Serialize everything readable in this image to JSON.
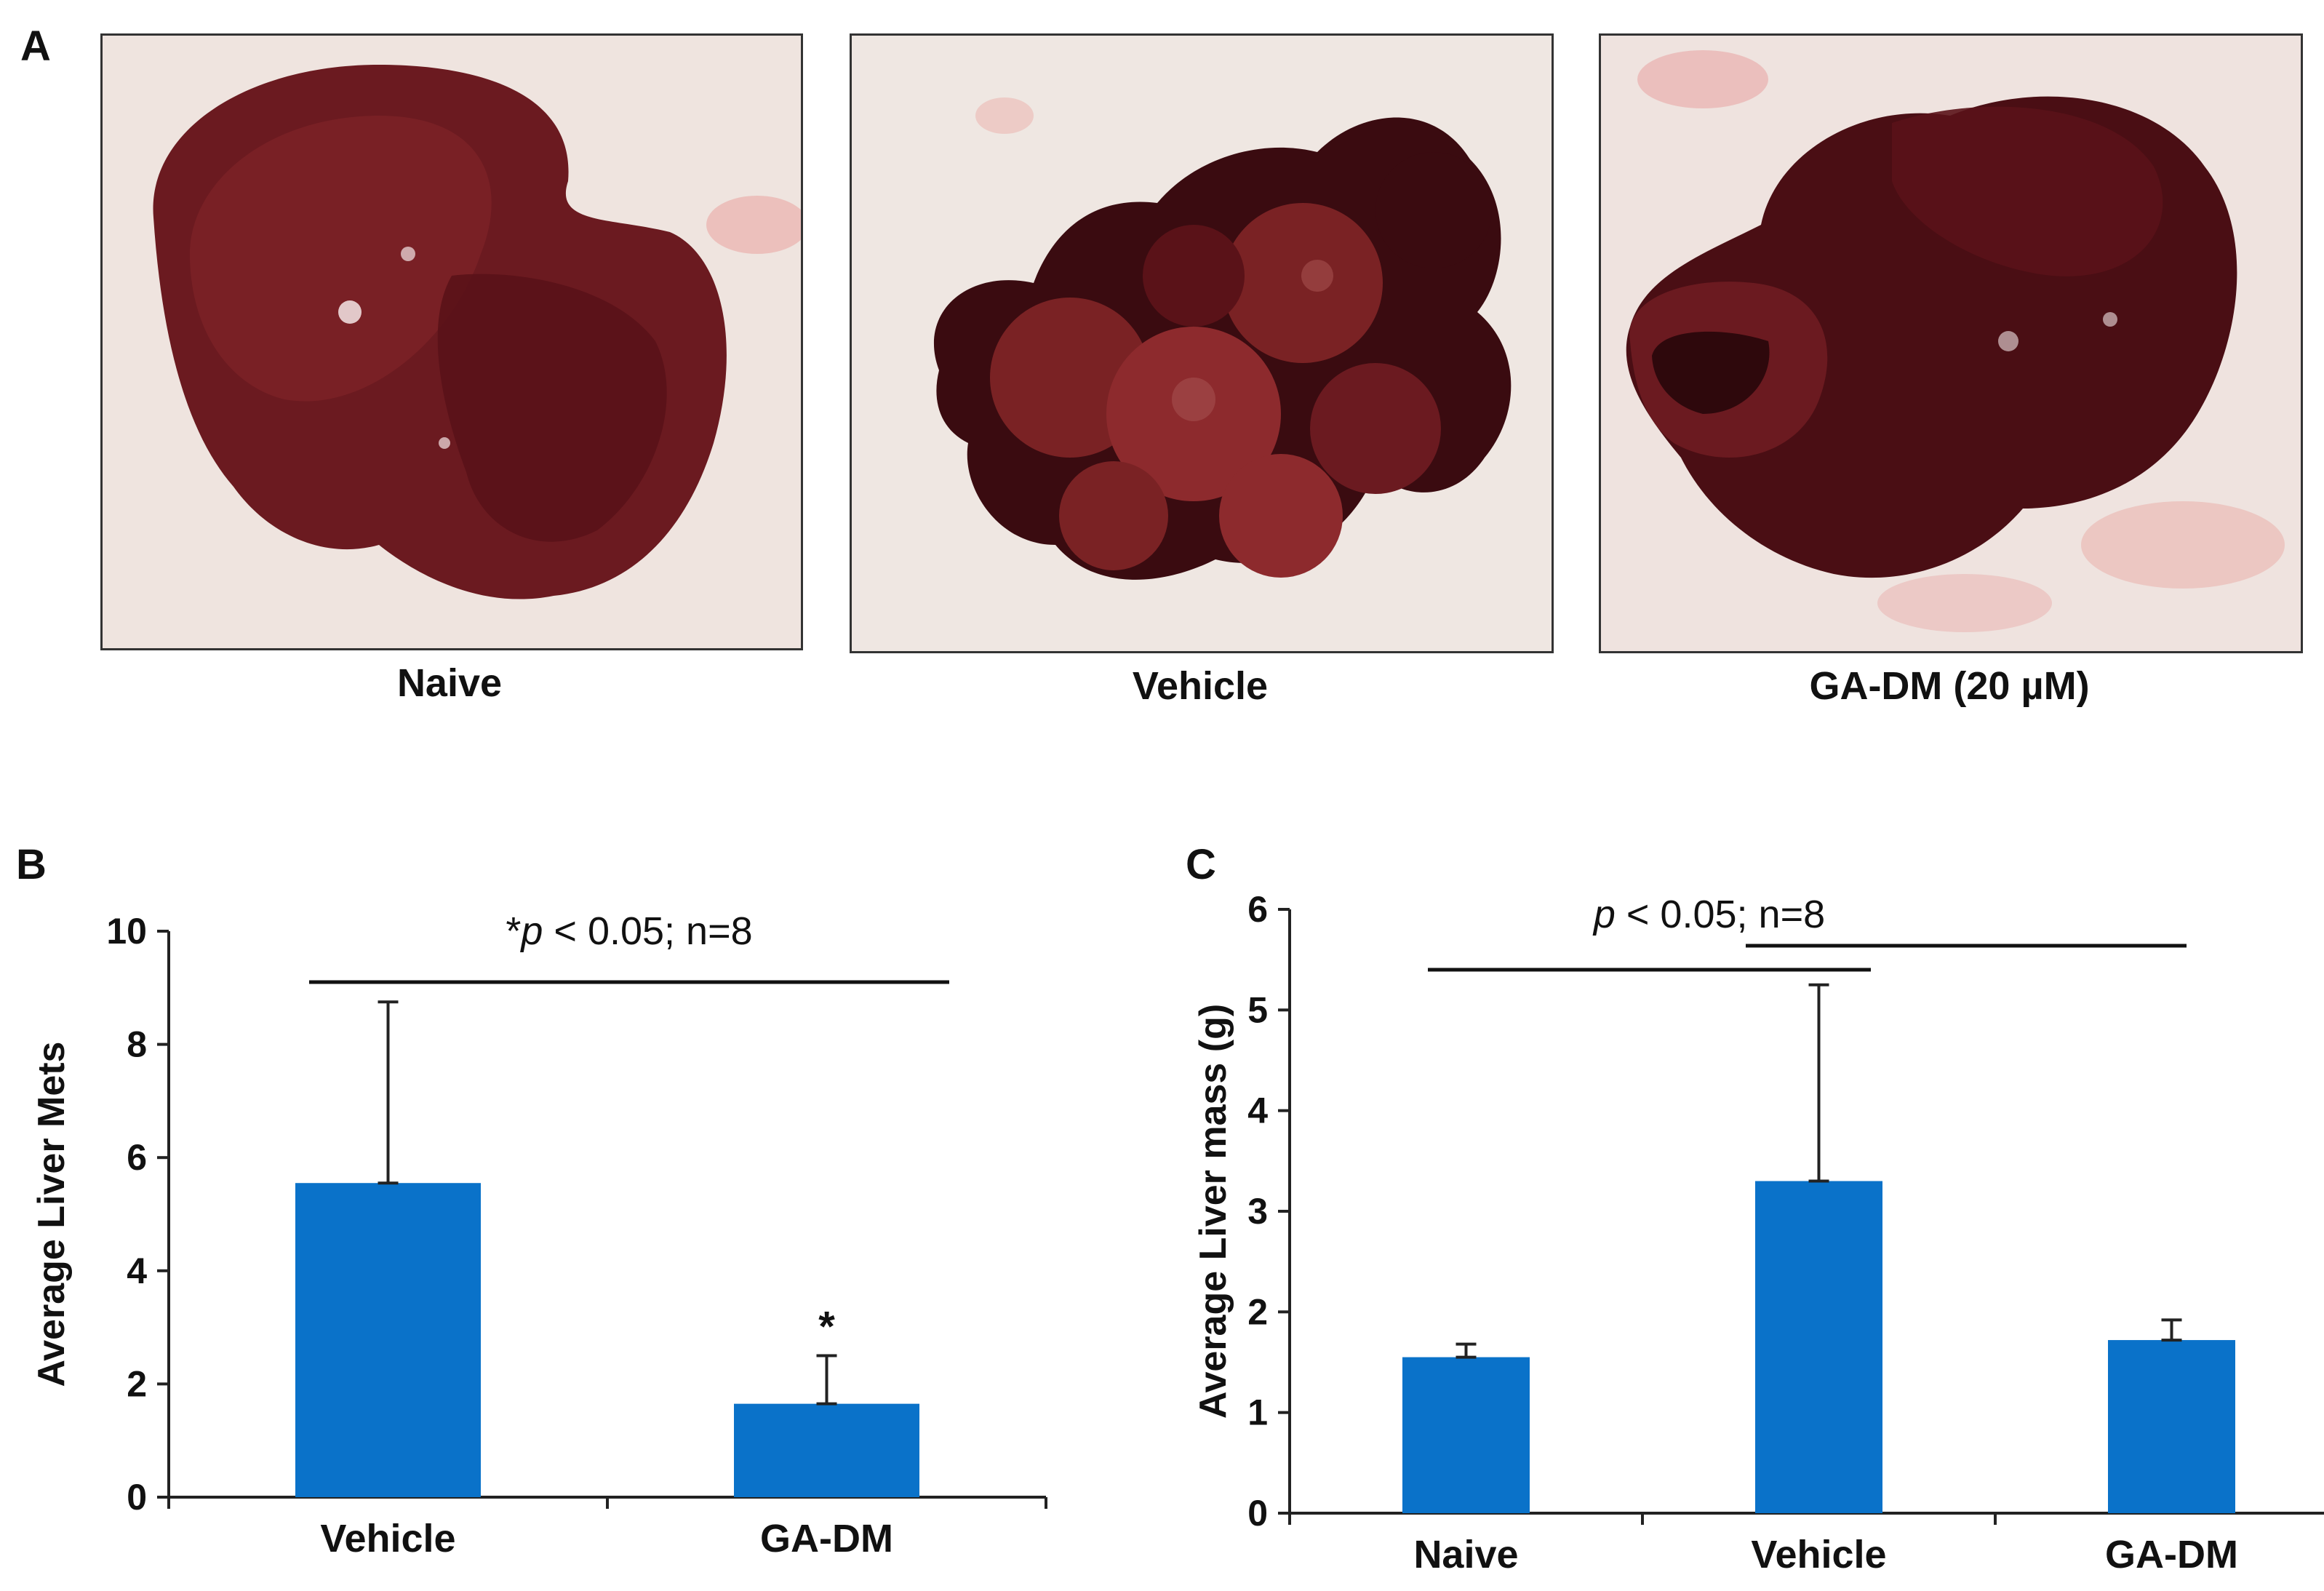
{
  "panels": {
    "a": {
      "letter": "A"
    },
    "b": {
      "letter": "B"
    },
    "c": {
      "letter": "C"
    }
  },
  "photos": [
    {
      "caption": "Naive"
    },
    {
      "caption": "Vehicle"
    },
    {
      "caption": "GA-DM (20 µM)"
    }
  ],
  "colors": {
    "bar": "#0a72c9",
    "axis": "#222222",
    "organ_dark": "#3a0b10",
    "organ_mid": "#6b1a20",
    "organ_light": "#8d2a2d"
  },
  "chart_data": [
    {
      "type": "bar",
      "categories": [
        "Vehicle",
        "GA-DM"
      ],
      "values": [
        5.55,
        1.65
      ],
      "error_upper": [
        8.75,
        2.5
      ],
      "ylabel": "Average Liver Mets",
      "ylim": [
        0,
        10
      ],
      "yticks": [
        0,
        2,
        4,
        6,
        8,
        10
      ],
      "annotation": {
        "prefix": "*",
        "p": "p",
        "rest": " < 0.05; n=8"
      },
      "markers": [
        {
          "category": "GA-DM",
          "text": "*"
        }
      ],
      "grid": false
    },
    {
      "type": "bar",
      "categories": [
        "Naive",
        "Vehicle",
        "GA-DM"
      ],
      "values": [
        1.55,
        3.3,
        1.72
      ],
      "error_upper": [
        1.68,
        5.25,
        1.92
      ],
      "ylabel": "Average Liver mass (g)",
      "ylim": [
        0,
        6
      ],
      "yticks": [
        0,
        1,
        2,
        3,
        4,
        5,
        6
      ],
      "annotation": {
        "prefix": "",
        "p": "p",
        "rest": " < 0.05; n=8"
      },
      "grid": false
    }
  ]
}
